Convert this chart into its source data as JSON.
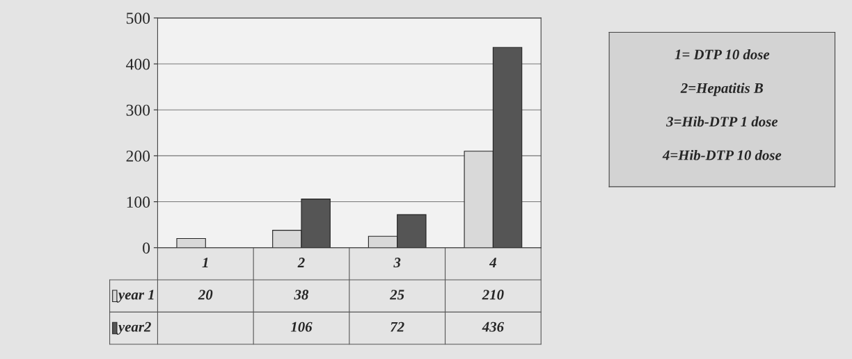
{
  "chart_data": {
    "type": "bar",
    "categories": [
      "1",
      "2",
      "3",
      "4"
    ],
    "series": [
      {
        "name": "year 1",
        "color": "#d9d9d9",
        "values": [
          20,
          38,
          25,
          210
        ]
      },
      {
        "name": "year2",
        "color": "#555555",
        "values": [
          null,
          106,
          72,
          436
        ]
      }
    ],
    "ylim": [
      0,
      500
    ],
    "yticks": [
      0,
      100,
      200,
      300,
      400,
      500
    ],
    "grid": "y",
    "legend": "bottom",
    "data_labels": true,
    "annotations": [
      "1= DTP 10 dose",
      "2=Hepatitis B",
      "3=Hib-DTP 1 dose",
      "4=Hib-DTP 10 dose"
    ]
  }
}
